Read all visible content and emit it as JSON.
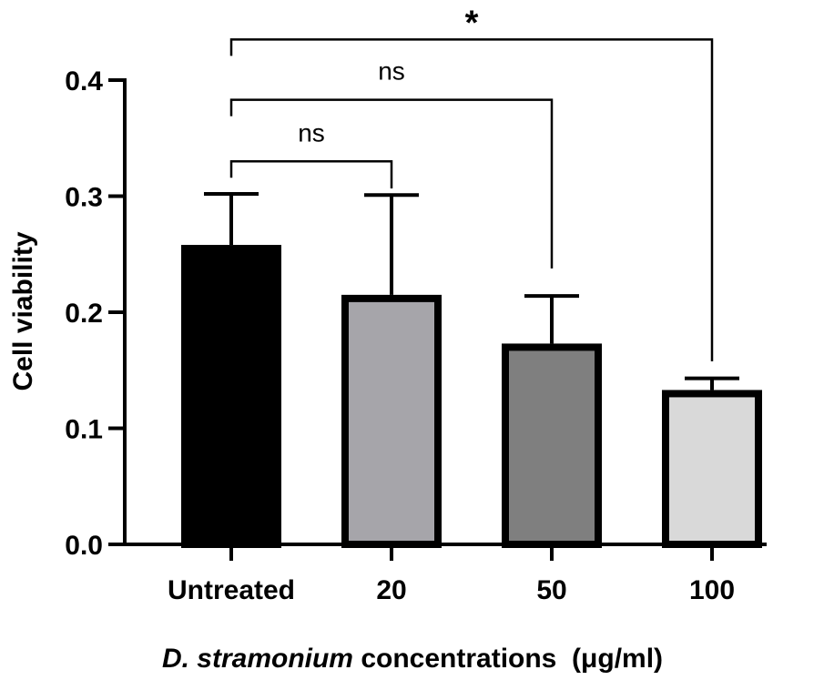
{
  "chart_data": {
    "type": "bar",
    "title": "",
    "ylabel": "Cell viability",
    "xlabel_italic": "D. stramonium",
    "xlabel_rest": " concentrations  (μg/ml)",
    "ylim": [
      0,
      0.4
    ],
    "yticks": [
      0.0,
      0.1,
      0.2,
      0.3,
      0.4
    ],
    "ytick_labels": [
      "0.0",
      "0.1",
      "0.2",
      "0.3",
      "0.4"
    ],
    "categories": [
      "Untreated",
      "20",
      "50",
      "100"
    ],
    "values": [
      0.258,
      0.215,
      0.173,
      0.133
    ],
    "errors": [
      0.044,
      0.086,
      0.041,
      0.01
    ],
    "bar_colors": [
      "#000000",
      "#a6a5aa",
      "#7f7f7f",
      "#d9d9d9"
    ],
    "significance": [
      {
        "from": 0,
        "to": 1,
        "label": "ns",
        "bracket_y": 0.33,
        "drop_to": 0.302
      },
      {
        "from": 0,
        "to": 2,
        "label": "ns",
        "bracket_y": 0.383,
        "drop_to": 0.233
      },
      {
        "from": 0,
        "to": 3,
        "label": "*",
        "bracket_y": 0.435,
        "drop_to": 0.153
      }
    ]
  }
}
